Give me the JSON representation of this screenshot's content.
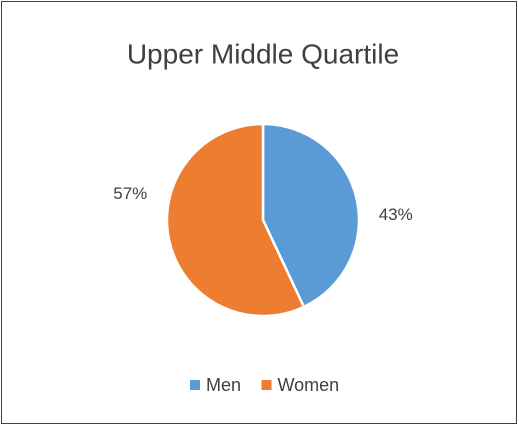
{
  "chart_data": {
    "type": "pie",
    "title": "Upper Middle Quartile",
    "categories": [
      "Men",
      "Women"
    ],
    "values": [
      43,
      57
    ],
    "value_labels": [
      "43%",
      "57%"
    ],
    "colors": [
      "#5b9bd5",
      "#ed7d31"
    ],
    "legend": "bottom"
  }
}
